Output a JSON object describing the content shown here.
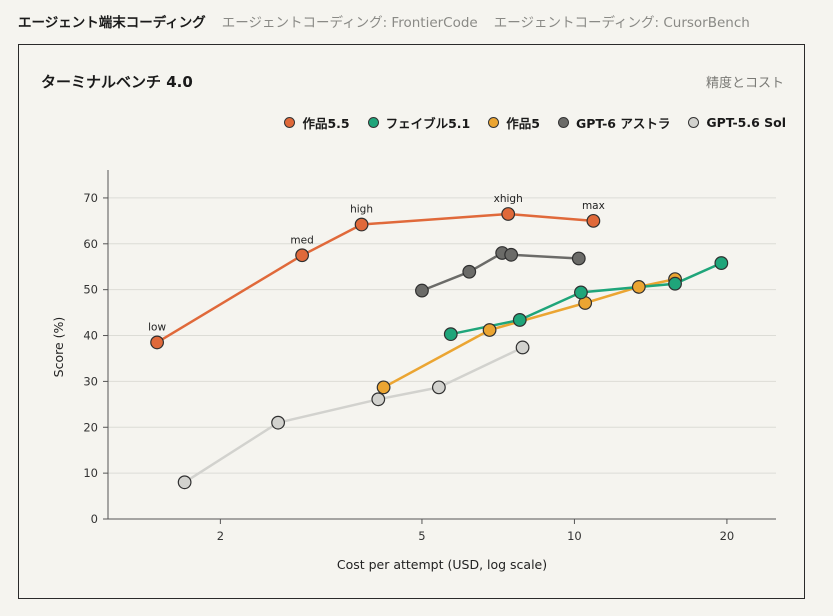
{
  "tabs": [
    {
      "label": "エージェント端末コーディング",
      "active": true
    },
    {
      "label": "エージェントコーディング: FrontierCode",
      "active": false
    },
    {
      "label": "エージェントコーディング: CursorBench",
      "active": false
    }
  ],
  "card": {
    "title": "ターミナルベンチ 4.0",
    "mode_label": "精度とコスト"
  },
  "chart_data": {
    "type": "line",
    "title": "ターミナルベンチ 4.0",
    "xlabel": "Cost per attempt (USD, log scale)",
    "ylabel": "Score (%)",
    "xscale": "log",
    "xlim": [
      1.2,
      25
    ],
    "ylim": [
      0,
      75
    ],
    "xticks": [
      2,
      5,
      10,
      20
    ],
    "yticks": [
      0,
      10,
      20,
      30,
      40,
      50,
      60,
      70
    ],
    "grid": "horizontal",
    "legend_position": "top-right",
    "series": [
      {
        "name": "作品5.5",
        "color": "#e0693a",
        "points": [
          {
            "x": 1.5,
            "y": 38.5,
            "label": "low"
          },
          {
            "x": 2.9,
            "y": 57.5,
            "label": "med"
          },
          {
            "x": 3.8,
            "y": 64.2,
            "label": "high"
          },
          {
            "x": 7.4,
            "y": 66.5,
            "label": "xhigh"
          },
          {
            "x": 10.9,
            "y": 65.0,
            "label": "max"
          }
        ]
      },
      {
        "name": "フェイブル5.1",
        "color": "#1fa57a",
        "points": [
          {
            "x": 5.7,
            "y": 40.3
          },
          {
            "x": 7.8,
            "y": 43.4
          },
          {
            "x": 10.3,
            "y": 49.4
          },
          {
            "x": 15.8,
            "y": 51.3
          },
          {
            "x": 19.5,
            "y": 55.8
          }
        ]
      },
      {
        "name": "作品5",
        "color": "#eba532",
        "points": [
          {
            "x": 4.2,
            "y": 28.7
          },
          {
            "x": 6.8,
            "y": 41.2
          },
          {
            "x": 10.5,
            "y": 47.1
          },
          {
            "x": 13.4,
            "y": 50.6
          },
          {
            "x": 15.8,
            "y": 52.3
          }
        ]
      },
      {
        "name": "GPT-6 アストラ",
        "color": "#6b6b68",
        "points": [
          {
            "x": 5.0,
            "y": 49.8
          },
          {
            "x": 6.2,
            "y": 53.9
          },
          {
            "x": 7.2,
            "y": 58.0
          },
          {
            "x": 7.5,
            "y": 57.6
          },
          {
            "x": 10.2,
            "y": 56.8
          }
        ]
      },
      {
        "name": "GPT-5.6 Sol",
        "color": "#d2d2ce",
        "points": [
          {
            "x": 1.7,
            "y": 8.0
          },
          {
            "x": 2.6,
            "y": 21.0
          },
          {
            "x": 4.1,
            "y": 26.1
          },
          {
            "x": 5.4,
            "y": 28.7
          },
          {
            "x": 7.9,
            "y": 37.4
          }
        ]
      }
    ]
  }
}
